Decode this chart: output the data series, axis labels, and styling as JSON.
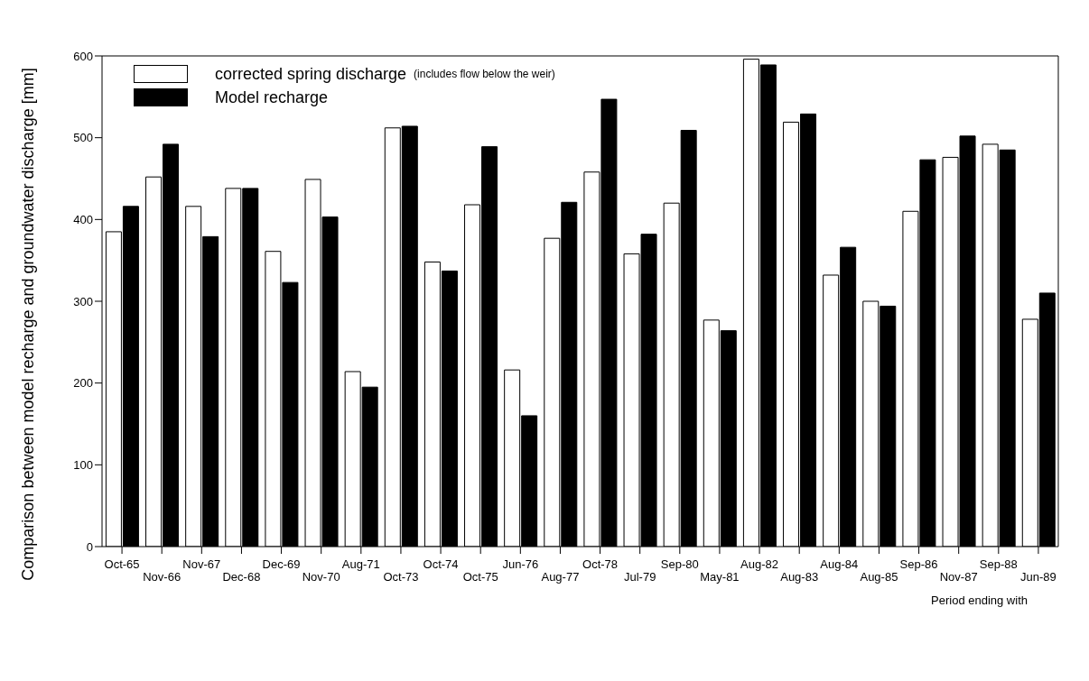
{
  "chart_data": {
    "type": "bar",
    "ylabel": "Comparison between model recharge and groundwater discharge [mm]",
    "xlabel": "Period ending with",
    "categories": [
      "Oct-65",
      "Nov-66",
      "Nov-67",
      "Dec-68",
      "Dec-69",
      "Nov-70",
      "Aug-71",
      "Oct-73",
      "Oct-74",
      "Oct-75",
      "Jun-76",
      "Aug-77",
      "Oct-78",
      "Jul-79",
      "Sep-80",
      "May-81",
      "Aug-82",
      "Aug-83",
      "Aug-84",
      "Aug-85",
      "Sep-86",
      "Nov-87",
      "Sep-88",
      "Jun-89"
    ],
    "series": [
      {
        "name": "corrected spring discharge",
        "color": "#ffffff",
        "values": [
          385,
          452,
          416,
          438,
          361,
          449,
          214,
          512,
          348,
          418,
          216,
          377,
          458,
          358,
          420,
          277,
          596,
          519,
          332,
          300,
          410,
          476,
          492,
          278
        ]
      },
      {
        "name": "Model recharge",
        "color": "#000000",
        "values": [
          416,
          492,
          379,
          438,
          323,
          403,
          195,
          514,
          337,
          489,
          160,
          421,
          547,
          382,
          509,
          264,
          589,
          529,
          366,
          294,
          473,
          502,
          485,
          310
        ]
      }
    ],
    "annotations": [
      "(includes flow below the weir)"
    ],
    "ylim": [
      0,
      600
    ],
    "yticks": [
      0,
      100,
      200,
      300,
      400,
      500,
      600
    ],
    "legend": "top left"
  }
}
